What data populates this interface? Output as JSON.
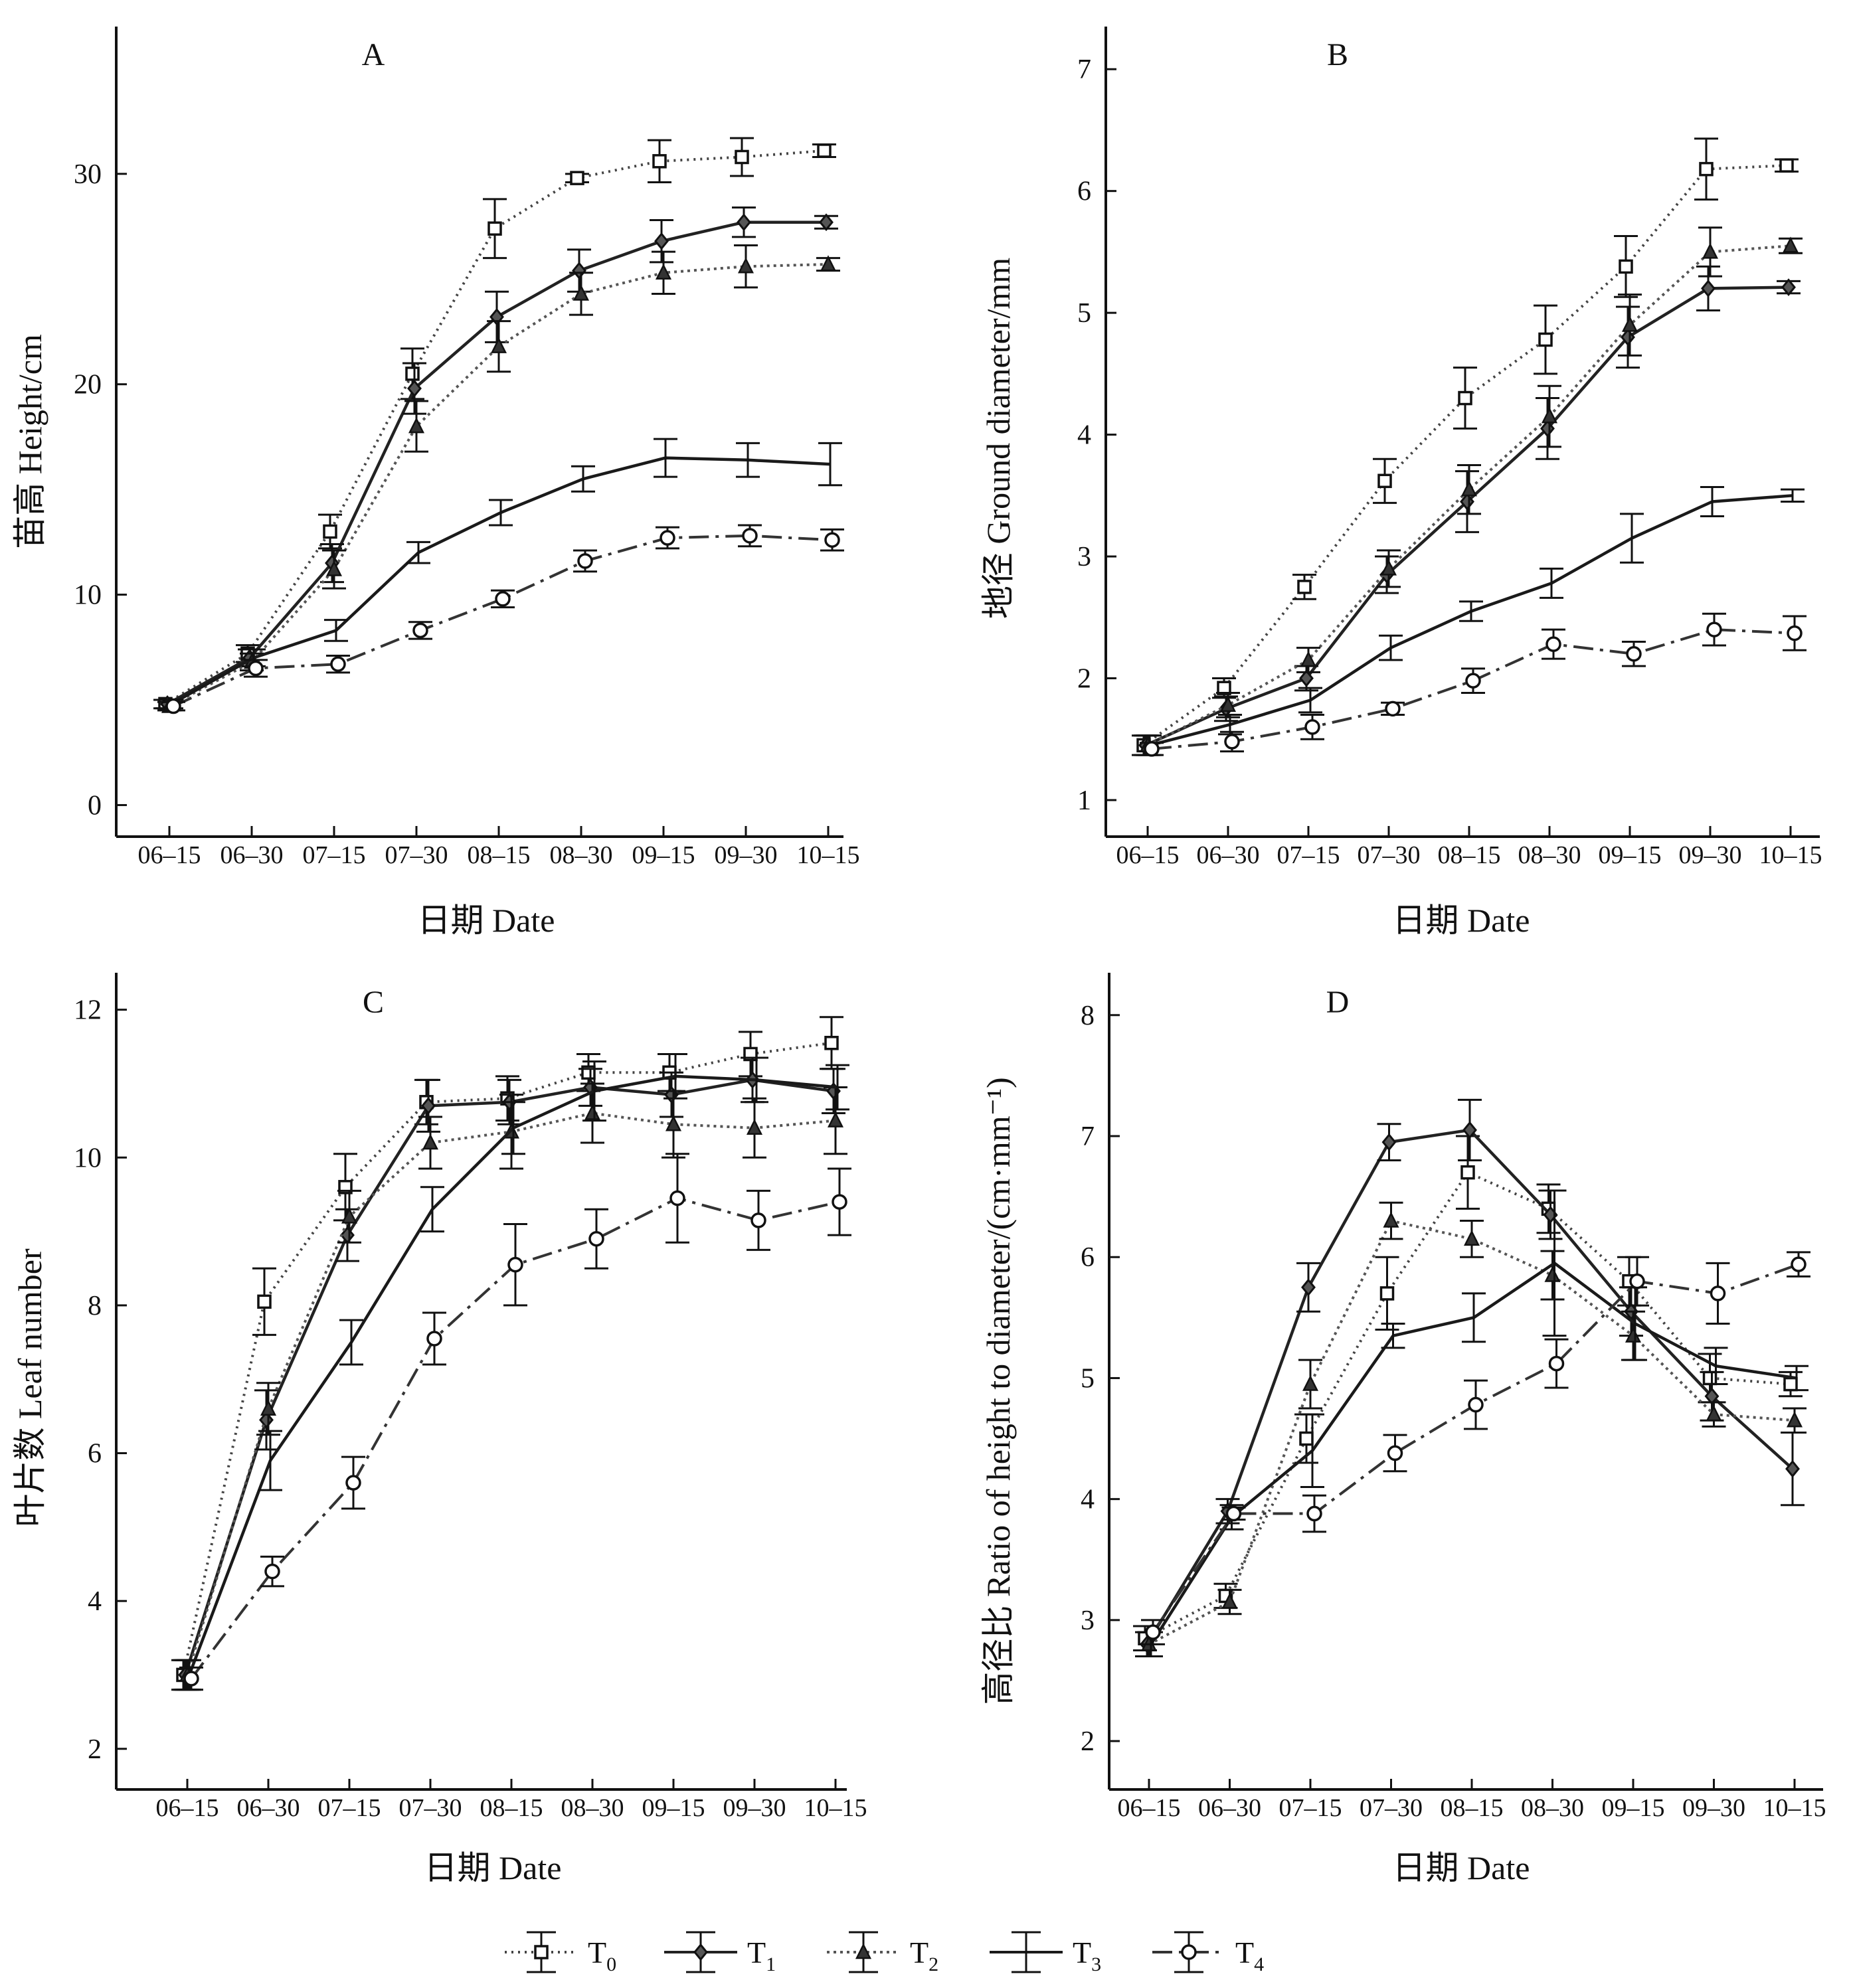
{
  "figure_title": "",
  "chart_data": [
    {
      "type": "line",
      "panel": "A",
      "title": "A",
      "xlabel": "日期 Date",
      "ylabel": "苗高 Height/cm",
      "categories": [
        "06–15",
        "06–30",
        "07–15",
        "07–30",
        "08–15",
        "08–30",
        "09–15",
        "09–30",
        "10–15"
      ],
      "yticks": [
        0,
        10,
        20,
        30
      ],
      "ylim": [
        -1.5,
        37
      ],
      "series": [
        {
          "name": "T0",
          "values": [
            4.8,
            7.2,
            13.0,
            20.5,
            27.4,
            29.8,
            30.6,
            30.8,
            31.1
          ],
          "errors": [
            0.2,
            0.4,
            0.8,
            1.2,
            1.4,
            0.2,
            1.0,
            0.9,
            0.3
          ]
        },
        {
          "name": "T1",
          "values": [
            4.8,
            7.0,
            11.5,
            19.8,
            23.2,
            25.4,
            26.8,
            27.7,
            27.7
          ],
          "errors": [
            0.2,
            0.4,
            0.9,
            1.2,
            1.2,
            1.0,
            1.0,
            0.7,
            0.3
          ]
        },
        {
          "name": "T2",
          "values": [
            4.7,
            6.8,
            11.2,
            18.0,
            21.8,
            24.3,
            25.3,
            25.6,
            25.7
          ],
          "errors": [
            0.2,
            0.4,
            0.9,
            1.2,
            1.2,
            1.0,
            1.0,
            1.0,
            0.3
          ]
        },
        {
          "name": "T3",
          "values": [
            4.8,
            7.0,
            8.3,
            12.0,
            13.9,
            15.5,
            16.5,
            16.4,
            16.2
          ],
          "errors": [
            0.2,
            0.4,
            0.5,
            0.5,
            0.6,
            0.6,
            0.9,
            0.8,
            1.0
          ]
        },
        {
          "name": "T4",
          "values": [
            4.7,
            6.5,
            6.7,
            8.3,
            9.8,
            11.6,
            12.7,
            12.8,
            12.6
          ],
          "errors": [
            0.2,
            0.4,
            0.4,
            0.4,
            0.4,
            0.5,
            0.5,
            0.5,
            0.5
          ]
        }
      ]
    },
    {
      "type": "line",
      "panel": "B",
      "title": "B",
      "xlabel": "日期 Date",
      "ylabel": "地径 Ground diameter/mm",
      "categories": [
        "06–15",
        "06–30",
        "07–15",
        "07–30",
        "08–15",
        "08–30",
        "09–15",
        "09–30",
        "10–15"
      ],
      "yticks": [
        1,
        2,
        3,
        4,
        5,
        6,
        7
      ],
      "ylim": [
        0.7,
        7.35
      ],
      "series": [
        {
          "name": "T0",
          "values": [
            1.45,
            1.92,
            2.75,
            3.62,
            4.3,
            4.78,
            5.38,
            6.18,
            6.21
          ],
          "errors": [
            0.08,
            0.08,
            0.1,
            0.18,
            0.25,
            0.28,
            0.25,
            0.25,
            0.05
          ]
        },
        {
          "name": "T1",
          "values": [
            1.45,
            1.75,
            2.0,
            2.85,
            3.45,
            4.05,
            4.8,
            5.2,
            5.21
          ],
          "errors": [
            0.08,
            0.1,
            0.1,
            0.15,
            0.25,
            0.25,
            0.25,
            0.18,
            0.05
          ]
        },
        {
          "name": "T2",
          "values": [
            1.45,
            1.78,
            2.15,
            2.9,
            3.55,
            4.15,
            4.9,
            5.5,
            5.55
          ],
          "errors": [
            0.08,
            0.1,
            0.1,
            0.15,
            0.2,
            0.25,
            0.25,
            0.2,
            0.06
          ]
        },
        {
          "name": "T3",
          "values": [
            1.45,
            1.62,
            1.82,
            2.25,
            2.55,
            2.78,
            3.15,
            3.45,
            3.5
          ],
          "errors": [
            0.08,
            0.08,
            0.1,
            0.1,
            0.08,
            0.12,
            0.2,
            0.12,
            0.05
          ]
        },
        {
          "name": "T4",
          "values": [
            1.42,
            1.48,
            1.6,
            1.75,
            1.98,
            2.28,
            2.2,
            2.4,
            2.37
          ],
          "errors": [
            0.05,
            0.08,
            0.1,
            0.05,
            0.1,
            0.12,
            0.1,
            0.13,
            0.14
          ]
        }
      ]
    },
    {
      "type": "line",
      "panel": "C",
      "title": "C",
      "xlabel": "日期 Date",
      "ylabel": "叶片数 Leaf number",
      "categories": [
        "06–15",
        "06–30",
        "07–15",
        "07–30",
        "08–15",
        "08–30",
        "09–15",
        "09–30",
        "10–15"
      ],
      "yticks": [
        2,
        4,
        6,
        8,
        10,
        12
      ],
      "ylim": [
        1.45,
        12.5
      ],
      "series": [
        {
          "name": "T0",
          "values": [
            3.0,
            8.05,
            9.6,
            10.75,
            10.8,
            11.15,
            11.15,
            11.4,
            11.55
          ],
          "errors": [
            0.2,
            0.45,
            0.45,
            0.3,
            0.3,
            0.25,
            0.25,
            0.3,
            0.35
          ]
        },
        {
          "name": "T1",
          "values": [
            3.0,
            6.45,
            8.95,
            10.7,
            10.75,
            10.95,
            10.85,
            11.05,
            10.9
          ],
          "errors": [
            0.2,
            0.4,
            0.35,
            0.35,
            0.3,
            0.25,
            0.3,
            0.3,
            0.3
          ]
        },
        {
          "name": "T2",
          "values": [
            3.0,
            6.6,
            9.2,
            10.2,
            10.35,
            10.6,
            10.45,
            10.4,
            10.5
          ],
          "errors": [
            0.2,
            0.35,
            0.35,
            0.35,
            0.5,
            0.4,
            0.45,
            0.4,
            0.45
          ]
        },
        {
          "name": "T3",
          "values": [
            3.0,
            5.9,
            7.5,
            9.3,
            10.4,
            10.9,
            11.1,
            11.05,
            10.95
          ],
          "errors": [
            0.2,
            0.4,
            0.3,
            0.3,
            0.35,
            0.4,
            0.3,
            0.3,
            0.3
          ]
        },
        {
          "name": "T4",
          "values": [
            2.95,
            4.4,
            5.6,
            7.55,
            8.55,
            8.9,
            9.45,
            9.15,
            9.4
          ],
          "errors": [
            0.15,
            0.2,
            0.35,
            0.35,
            0.55,
            0.4,
            0.6,
            0.4,
            0.45
          ]
        }
      ]
    },
    {
      "type": "line",
      "panel": "D",
      "title": "D",
      "xlabel": "日期 Date",
      "ylabel": "高径比 Ratio of height to diameter/(cm·mm⁻¹)",
      "categories": [
        "06–15",
        "06–30",
        "07–15",
        "07–30",
        "08–15",
        "08–30",
        "09–15",
        "09–30",
        "10–15"
      ],
      "yticks": [
        2,
        3,
        4,
        5,
        6,
        7,
        8
      ],
      "ylim": [
        1.6,
        8.35
      ],
      "series": [
        {
          "name": "T0",
          "values": [
            2.85,
            3.2,
            4.5,
            5.7,
            6.7,
            6.4,
            5.8,
            5.0,
            4.95
          ],
          "errors": [
            0.1,
            0.1,
            0.2,
            0.3,
            0.3,
            0.2,
            0.2,
            0.2,
            0.1
          ]
        },
        {
          "name": "T1",
          "values": [
            2.8,
            3.9,
            5.75,
            6.95,
            7.05,
            6.35,
            5.55,
            4.85,
            4.25
          ],
          "errors": [
            0.1,
            0.1,
            0.2,
            0.15,
            0.25,
            0.2,
            0.2,
            0.2,
            0.3
          ]
        },
        {
          "name": "T2",
          "values": [
            2.8,
            3.15,
            4.95,
            6.3,
            6.15,
            5.85,
            5.35,
            4.7,
            4.65
          ],
          "errors": [
            0.1,
            0.1,
            0.2,
            0.15,
            0.15,
            0.2,
            0.2,
            0.1,
            0.1
          ]
        },
        {
          "name": "T3",
          "values": [
            2.8,
            3.85,
            4.4,
            5.35,
            5.5,
            5.95,
            5.45,
            5.1,
            5.0
          ],
          "errors": [
            0.1,
            0.1,
            0.3,
            0.1,
            0.2,
            0.6,
            0.3,
            0.15,
            0.1
          ]
        },
        {
          "name": "T4",
          "values": [
            2.9,
            3.88,
            3.88,
            4.38,
            4.78,
            5.12,
            5.8,
            5.7,
            5.94
          ],
          "errors": [
            0.1,
            0.05,
            0.15,
            0.15,
            0.2,
            0.2,
            0.2,
            0.25,
            0.1
          ]
        }
      ]
    }
  ],
  "legend": [
    {
      "base": "T",
      "sub": "0"
    },
    {
      "base": "T",
      "sub": "1"
    },
    {
      "base": "T",
      "sub": "2"
    },
    {
      "base": "T",
      "sub": "3"
    },
    {
      "base": "T",
      "sub": "4"
    }
  ],
  "series_styles": {
    "T0": {
      "color": "#444444",
      "dash": "3 7",
      "marker": "square"
    },
    "T1": {
      "color": "#222222",
      "dash": "",
      "marker": "diamond"
    },
    "T2": {
      "color": "#555555",
      "dash": "4 6",
      "marker": "triangle"
    },
    "T3": {
      "color": "#1a1a1a",
      "dash": "",
      "marker": "none"
    },
    "T4": {
      "color": "#333333",
      "dash": "30 10 5 10",
      "marker": "circle"
    }
  }
}
